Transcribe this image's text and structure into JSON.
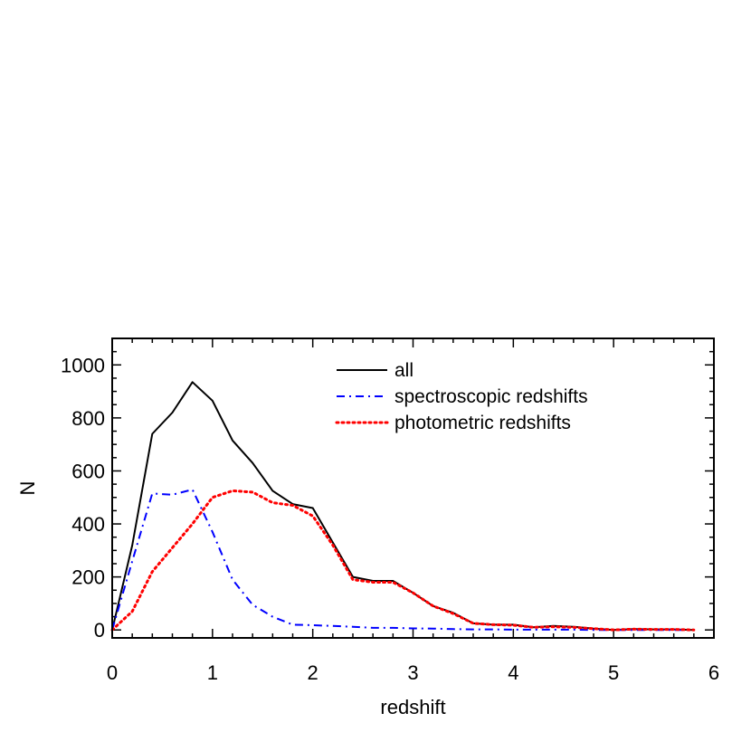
{
  "chart_data": {
    "type": "line",
    "xlabel": "redshift",
    "ylabel": "N",
    "xlim": [
      0,
      6
    ],
    "ylim": [
      -30,
      1100
    ],
    "x_ticks": [
      "0",
      "1",
      "2",
      "3",
      "4",
      "5",
      "6"
    ],
    "y_ticks": [
      "0",
      "200",
      "400",
      "600",
      "800",
      "1000"
    ],
    "legend_position": "top-center",
    "series": [
      {
        "name": "all",
        "color": "#000000",
        "style": "solid",
        "x": [
          0,
          0.2,
          0.4,
          0.6,
          0.8,
          1.0,
          1.2,
          1.4,
          1.6,
          1.8,
          2.0,
          2.2,
          2.4,
          2.6,
          2.8,
          3.0,
          3.2,
          3.4,
          3.6,
          3.8,
          4.0,
          4.2,
          4.4,
          4.6,
          4.8,
          5.0,
          5.2,
          5.4,
          5.6,
          5.8
        ],
        "y": [
          0,
          320,
          740,
          820,
          935,
          865,
          715,
          630,
          525,
          475,
          460,
          330,
          200,
          185,
          185,
          140,
          90,
          65,
          25,
          20,
          20,
          10,
          15,
          12,
          5,
          0,
          3,
          2,
          2,
          0
        ]
      },
      {
        "name": "spectroscopic redshifts",
        "color": "#0000ff",
        "style": "dashdot",
        "x": [
          0,
          0.2,
          0.4,
          0.6,
          0.8,
          1.0,
          1.2,
          1.4,
          1.6,
          1.8,
          2.0,
          2.2,
          2.4,
          2.6,
          2.8,
          3.0,
          3.2,
          3.4,
          3.6,
          3.8,
          4.0,
          4.2,
          4.4,
          4.6,
          4.8,
          5.0,
          5.2,
          5.4,
          5.6,
          5.8
        ],
        "y": [
          0,
          260,
          515,
          510,
          530,
          370,
          190,
          95,
          50,
          20,
          18,
          15,
          12,
          8,
          8,
          6,
          5,
          3,
          2,
          2,
          1,
          1,
          1,
          1,
          0,
          0,
          0,
          0,
          0,
          0
        ]
      },
      {
        "name": "photometric redshifts",
        "color": "#ff0000",
        "style": "dotted",
        "x": [
          0,
          0.2,
          0.4,
          0.6,
          0.8,
          1.0,
          1.2,
          1.4,
          1.6,
          1.8,
          2.0,
          2.2,
          2.4,
          2.6,
          2.8,
          3.0,
          3.2,
          3.4,
          3.6,
          3.8,
          4.0,
          4.2,
          4.4,
          4.6,
          4.8,
          5.0,
          5.2,
          5.4,
          5.6,
          5.8
        ],
        "y": [
          0,
          70,
          220,
          310,
          400,
          500,
          525,
          520,
          480,
          470,
          430,
          320,
          190,
          180,
          180,
          140,
          90,
          62,
          25,
          20,
          18,
          10,
          12,
          10,
          5,
          0,
          3,
          2,
          2,
          0
        ]
      }
    ]
  }
}
